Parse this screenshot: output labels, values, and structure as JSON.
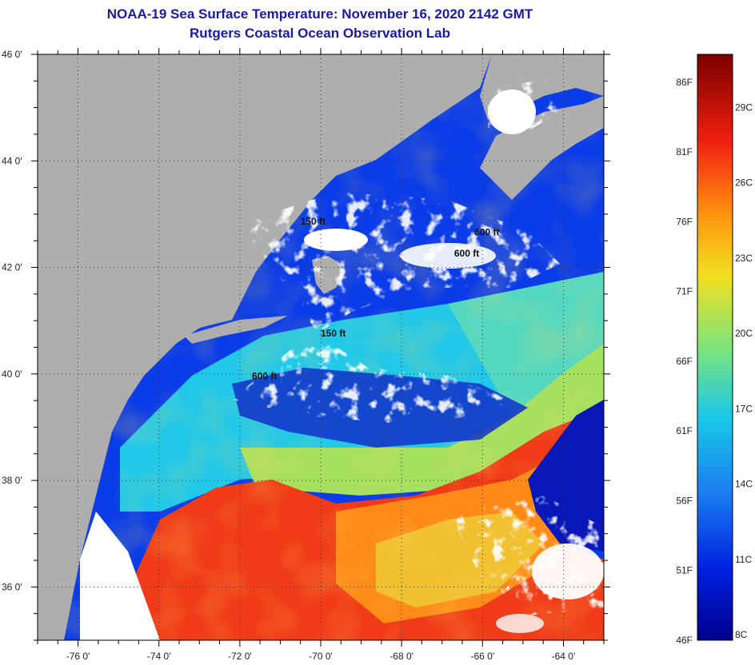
{
  "title": {
    "line1": "NOAA-19 Sea Surface Temperature:  November 16, 2020 2142 GMT",
    "line2": "Rutgers Coastal Ocean Observation Lab"
  },
  "map": {
    "lat_labels": [
      {
        "value": 46,
        "label": "46 0'"
      },
      {
        "value": 44,
        "label": "44 0'"
      },
      {
        "value": 42,
        "label": "42 0'"
      },
      {
        "value": 40,
        "label": "40 0'"
      },
      {
        "value": 38,
        "label": "38 0'"
      },
      {
        "value": 36,
        "label": "36 0'"
      }
    ],
    "lon_labels": [
      {
        "value": -76,
        "label": "-76 0'"
      },
      {
        "value": -74,
        "label": "-74 0'"
      },
      {
        "value": -72,
        "label": "-72 0'"
      },
      {
        "value": -70,
        "label": "-70 0'"
      },
      {
        "value": -68,
        "label": "-68 0'"
      },
      {
        "value": -66,
        "label": "-66 0'"
      },
      {
        "value": -64,
        "label": "-64 0'"
      }
    ],
    "lat_range": [
      35,
      46
    ],
    "lon_range": [
      -77,
      -63
    ],
    "isobaths": [
      {
        "label": "150 ft",
        "lat": 42.8,
        "lon": -70.5
      },
      {
        "label": "600 ft",
        "lat": 42.6,
        "lon": -66.2
      },
      {
        "label": "600 ft",
        "lat": 42.2,
        "lon": -66.7
      },
      {
        "label": "150 ft",
        "lat": 40.7,
        "lon": -70.0
      },
      {
        "label": "600 ft",
        "lat": 39.9,
        "lon": -71.7
      }
    ]
  },
  "colorbar": {
    "fahrenheit_labels": [
      "86F",
      "81F",
      "76F",
      "71F",
      "66F",
      "61F",
      "56F",
      "51F",
      "46F"
    ],
    "celsius_labels": [
      "29C",
      "26C",
      "23C",
      "20C",
      "17C",
      "14C",
      "11C",
      "8C"
    ],
    "f_range": [
      46,
      88
    ],
    "c_labels_values": [
      29,
      26,
      23,
      20,
      17,
      14,
      11,
      8
    ],
    "f_labels_values": [
      86,
      81,
      76,
      71,
      66,
      61,
      56,
      51,
      46
    ]
  }
}
